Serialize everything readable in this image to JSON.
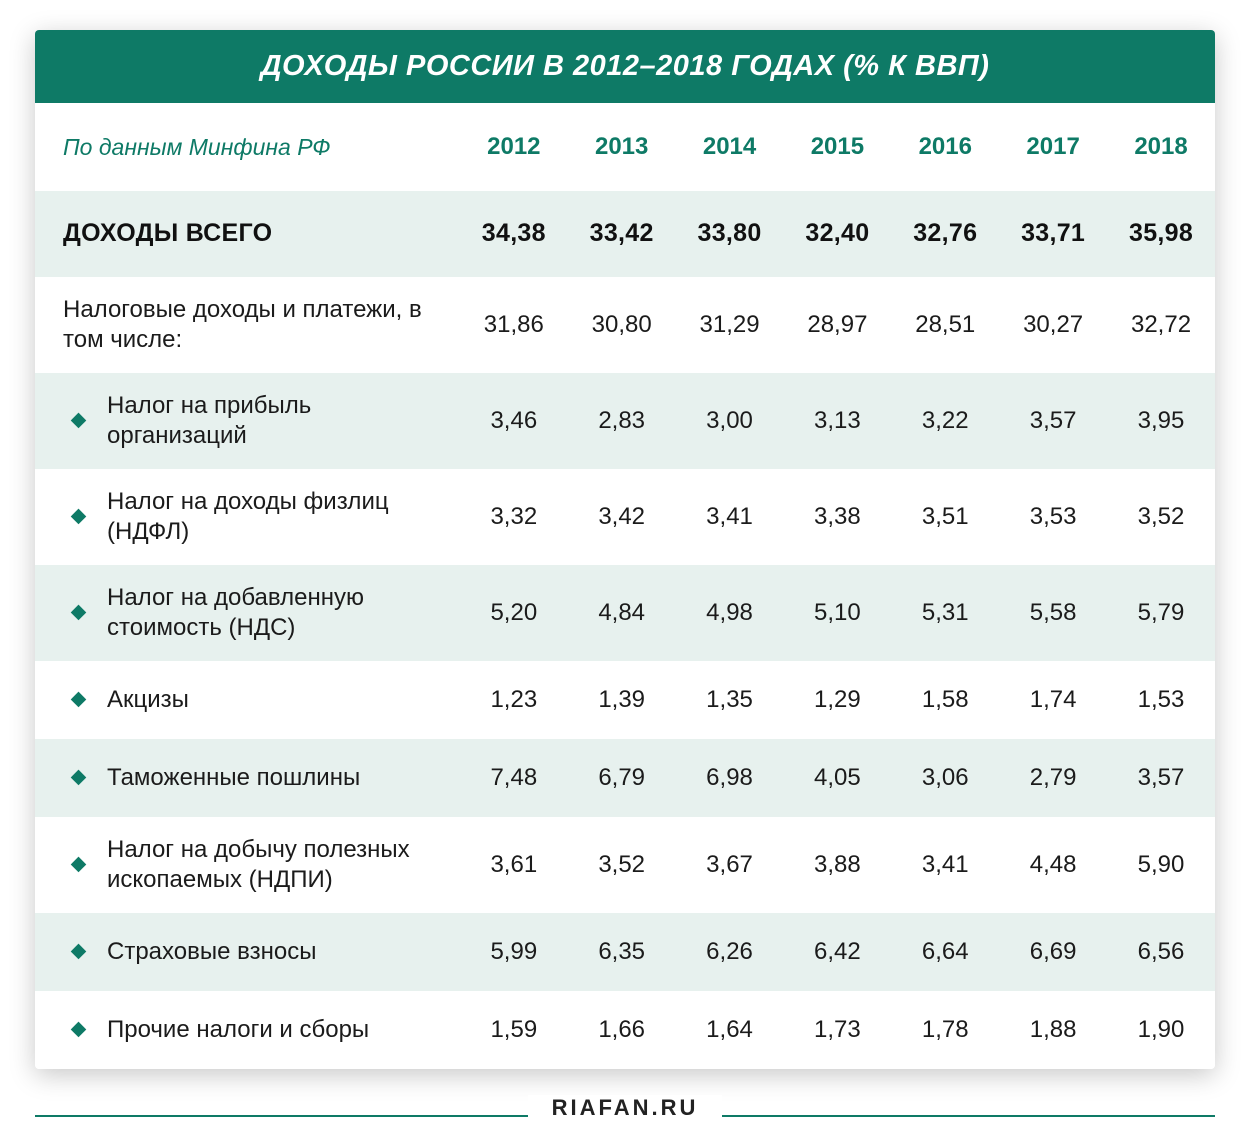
{
  "type": "table",
  "title": "ДОХОДЫ РОССИИ В 2012–2018 ГОДАХ (% К ВВП)",
  "subtitle": "По данным Минфина РФ",
  "footer_site": "RIAFAN.RU",
  "colors": {
    "header_bg": "#0e7a66",
    "header_text": "#ffffff",
    "year_text": "#0e7a66",
    "subtitle_text": "#0e7a66",
    "body_text": "#1b1b1b",
    "row_alt_bg": "#e7f1ee",
    "row_bg": "#ffffff",
    "bullet": "#0e7a66",
    "rule": "#0e7a66"
  },
  "font_sizes": {
    "title": 29,
    "year_header": 24,
    "subtitle": 23,
    "total": 25,
    "cell": 24,
    "footer": 22
  },
  "years": [
    "2012",
    "2013",
    "2014",
    "2015",
    "2016",
    "2017",
    "2018"
  ],
  "total_row": {
    "label": "ДОХОДЫ ВСЕГО",
    "values": [
      "34,38",
      "33,42",
      "33,80",
      "32,40",
      "32,76",
      "33,71",
      "35,98"
    ]
  },
  "rows": [
    {
      "label": "Налоговые доходы и платежи, в том числе:",
      "bullet": false,
      "tall": true,
      "values": [
        "31,86",
        "30,80",
        "31,29",
        "28,97",
        "28,51",
        "30,27",
        "32,72"
      ]
    },
    {
      "label": "Налог на прибыль организаций",
      "bullet": true,
      "tall": true,
      "values": [
        "3,46",
        "2,83",
        "3,00",
        "3,13",
        "3,22",
        "3,57",
        "3,95"
      ]
    },
    {
      "label": "Налог на доходы физлиц (НДФЛ)",
      "bullet": true,
      "tall": true,
      "values": [
        "3,32",
        "3,42",
        "3,41",
        "3,38",
        "3,51",
        "3,53",
        "3,52"
      ]
    },
    {
      "label": "Налог на добавленную стоимость (НДС)",
      "bullet": true,
      "tall": true,
      "values": [
        "5,20",
        "4,84",
        "4,98",
        "5,10",
        "5,31",
        "5,58",
        "5,79"
      ]
    },
    {
      "label": "Акцизы",
      "bullet": true,
      "tall": false,
      "values": [
        "1,23",
        "1,39",
        "1,35",
        "1,29",
        "1,58",
        "1,74",
        "1,53"
      ]
    },
    {
      "label": "Таможенные пошлины",
      "bullet": true,
      "tall": false,
      "values": [
        "7,48",
        "6,79",
        "6,98",
        "4,05",
        "3,06",
        "2,79",
        "3,57"
      ]
    },
    {
      "label": "Налог на добычу полезных ископаемых (НДПИ)",
      "bullet": true,
      "tall": true,
      "values": [
        "3,61",
        "3,52",
        "3,67",
        "3,88",
        "3,41",
        "4,48",
        "5,90"
      ]
    },
    {
      "label": "Страховые взносы",
      "bullet": true,
      "tall": false,
      "values": [
        "5,99",
        "6,35",
        "6,26",
        "6,42",
        "6,64",
        "6,69",
        "6,56"
      ]
    },
    {
      "label": "Прочие налоги и сборы",
      "bullet": true,
      "tall": false,
      "values": [
        "1,59",
        "1,66",
        "1,64",
        "1,73",
        "1,78",
        "1,88",
        "1,90"
      ]
    }
  ]
}
